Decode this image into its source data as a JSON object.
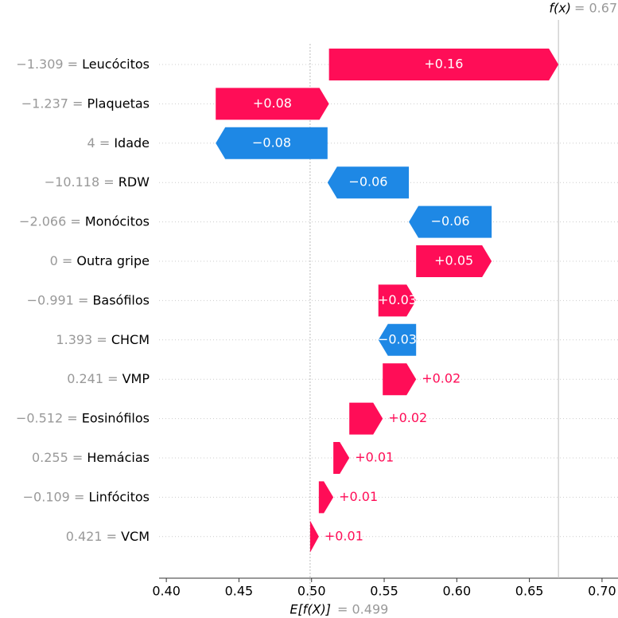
{
  "chart_data": {
    "type": "waterfall",
    "categories": [
      "Leucócitos",
      "Plaquetas",
      "Idade",
      "RDW",
      "Monócitos",
      "Outra gripe",
      "Basófilos",
      "CHCM",
      "VMP",
      "Eosinófilos",
      "Hemácias",
      "Linfócitos",
      "VCM"
    ],
    "feature_values": [
      "−1.309 =",
      "−1.237 =",
      "4 =",
      "−10.118 =",
      "−2.066 =",
      "0 =",
      "−0.991 =",
      "1.393 =",
      "0.241 =",
      "−0.512 =",
      "0.255 =",
      "−0.109 =",
      "0.421 ="
    ],
    "values": [
      0.158,
      0.078,
      -0.077,
      -0.056,
      -0.057,
      0.052,
      0.026,
      -0.026,
      0.023,
      0.023,
      0.011,
      0.01,
      0.006
    ],
    "value_labels": [
      "+0.16",
      "+0.08",
      "−0.08",
      "−0.06",
      "−0.06",
      "+0.05",
      "+0.03",
      "−0.03",
      "+0.02",
      "+0.02",
      "+0.01",
      "+0.01",
      "+0.01"
    ],
    "positive_color": "#ff0d57",
    "negative_color": "#1e88e5",
    "base_label": "E[f(X)]",
    "base_value": 0.499,
    "base_value_label": "= 0.499",
    "output_label": "f(x)",
    "output_value": 0.67,
    "output_value_label": "= 0.67",
    "xlim": [
      0.395,
      0.711
    ],
    "xticks": [
      {
        "value": 0.4,
        "label": "0.40"
      },
      0.45,
      {
        "value": 0.5,
        "label": "0.50"
      },
      0.55,
      {
        "value": 0.6,
        "label": "0.60"
      },
      0.65,
      {
        "value": 0.7,
        "label": "0.70"
      }
    ]
  }
}
